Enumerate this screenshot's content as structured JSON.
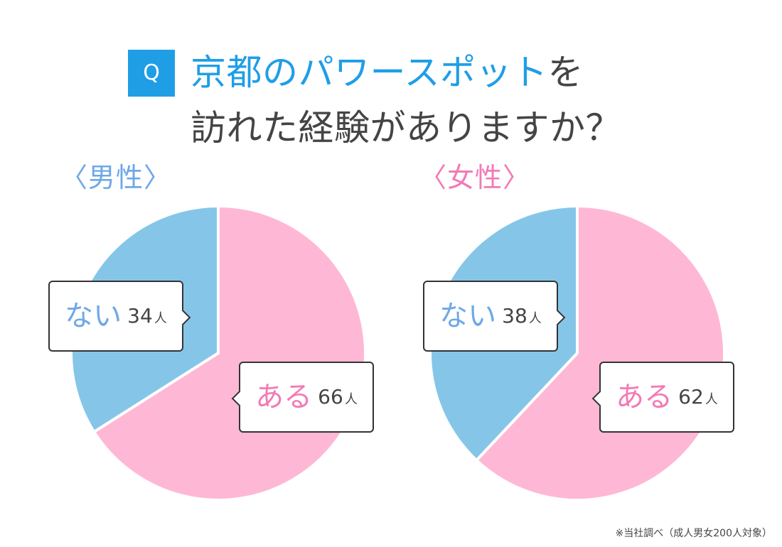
{
  "title": {
    "badge": "Q",
    "line1_blue": "京都のパワースポット",
    "line1_dark": "を",
    "line2": "訪れた経験がありますか？"
  },
  "chart_data": [
    {
      "type": "pie",
      "title": "〈男性〉",
      "categories": [
        "ある",
        "ない"
      ],
      "values": [
        66,
        34
      ],
      "colors": [
        "#ffb7d6",
        "#85c6e8"
      ],
      "value_labels": [
        "66",
        "34"
      ],
      "unit": "人"
    },
    {
      "type": "pie",
      "title": "〈女性〉",
      "categories": [
        "ある",
        "ない"
      ],
      "values": [
        62,
        38
      ],
      "colors": [
        "#ffb7d6",
        "#85c6e8"
      ],
      "value_labels": [
        "62",
        "38"
      ],
      "unit": "人"
    }
  ],
  "footnote": "※当社調べ（成人男女200人対象）"
}
